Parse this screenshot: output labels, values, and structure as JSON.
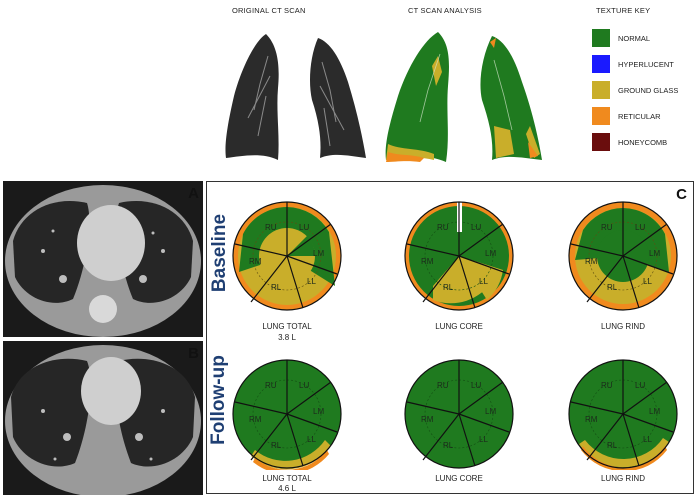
{
  "header": {
    "original_title": "ORIGINAL CT SCAN",
    "analysis_title": "CT SCAN ANALYSIS",
    "key_title": "TEXTURE KEY"
  },
  "texture_key": [
    {
      "label": "NORMAL",
      "color": "#1f7a1f"
    },
    {
      "label": "HYPERLUCENT",
      "color": "#1a1aff"
    },
    {
      "label": "GROUND GLASS",
      "color": "#c9ae2a"
    },
    {
      "label": "RETICULAR",
      "color": "#f08a1e"
    },
    {
      "label": "HONEYCOMB",
      "color": "#6a0d0d"
    }
  ],
  "panels": {
    "a": "A",
    "b": "B",
    "c": "C"
  },
  "rows": {
    "baseline": "Baseline",
    "followup": "Follow-up"
  },
  "segments": {
    "ru": "RU",
    "lu": "LU",
    "rm": "RM",
    "lm": "LM",
    "rl": "RL",
    "ll": "LL"
  },
  "captions": {
    "baseline_total": "LUNG TOTAL",
    "baseline_total_volume": "3.8 L",
    "baseline_core": "LUNG CORE",
    "baseline_rind": "LUNG RIND",
    "followup_total": "LUNG TOTAL",
    "followup_total_volume": "4.6 L",
    "followup_core": "LUNG CORE",
    "followup_rind": "LUNG RIND"
  }
}
